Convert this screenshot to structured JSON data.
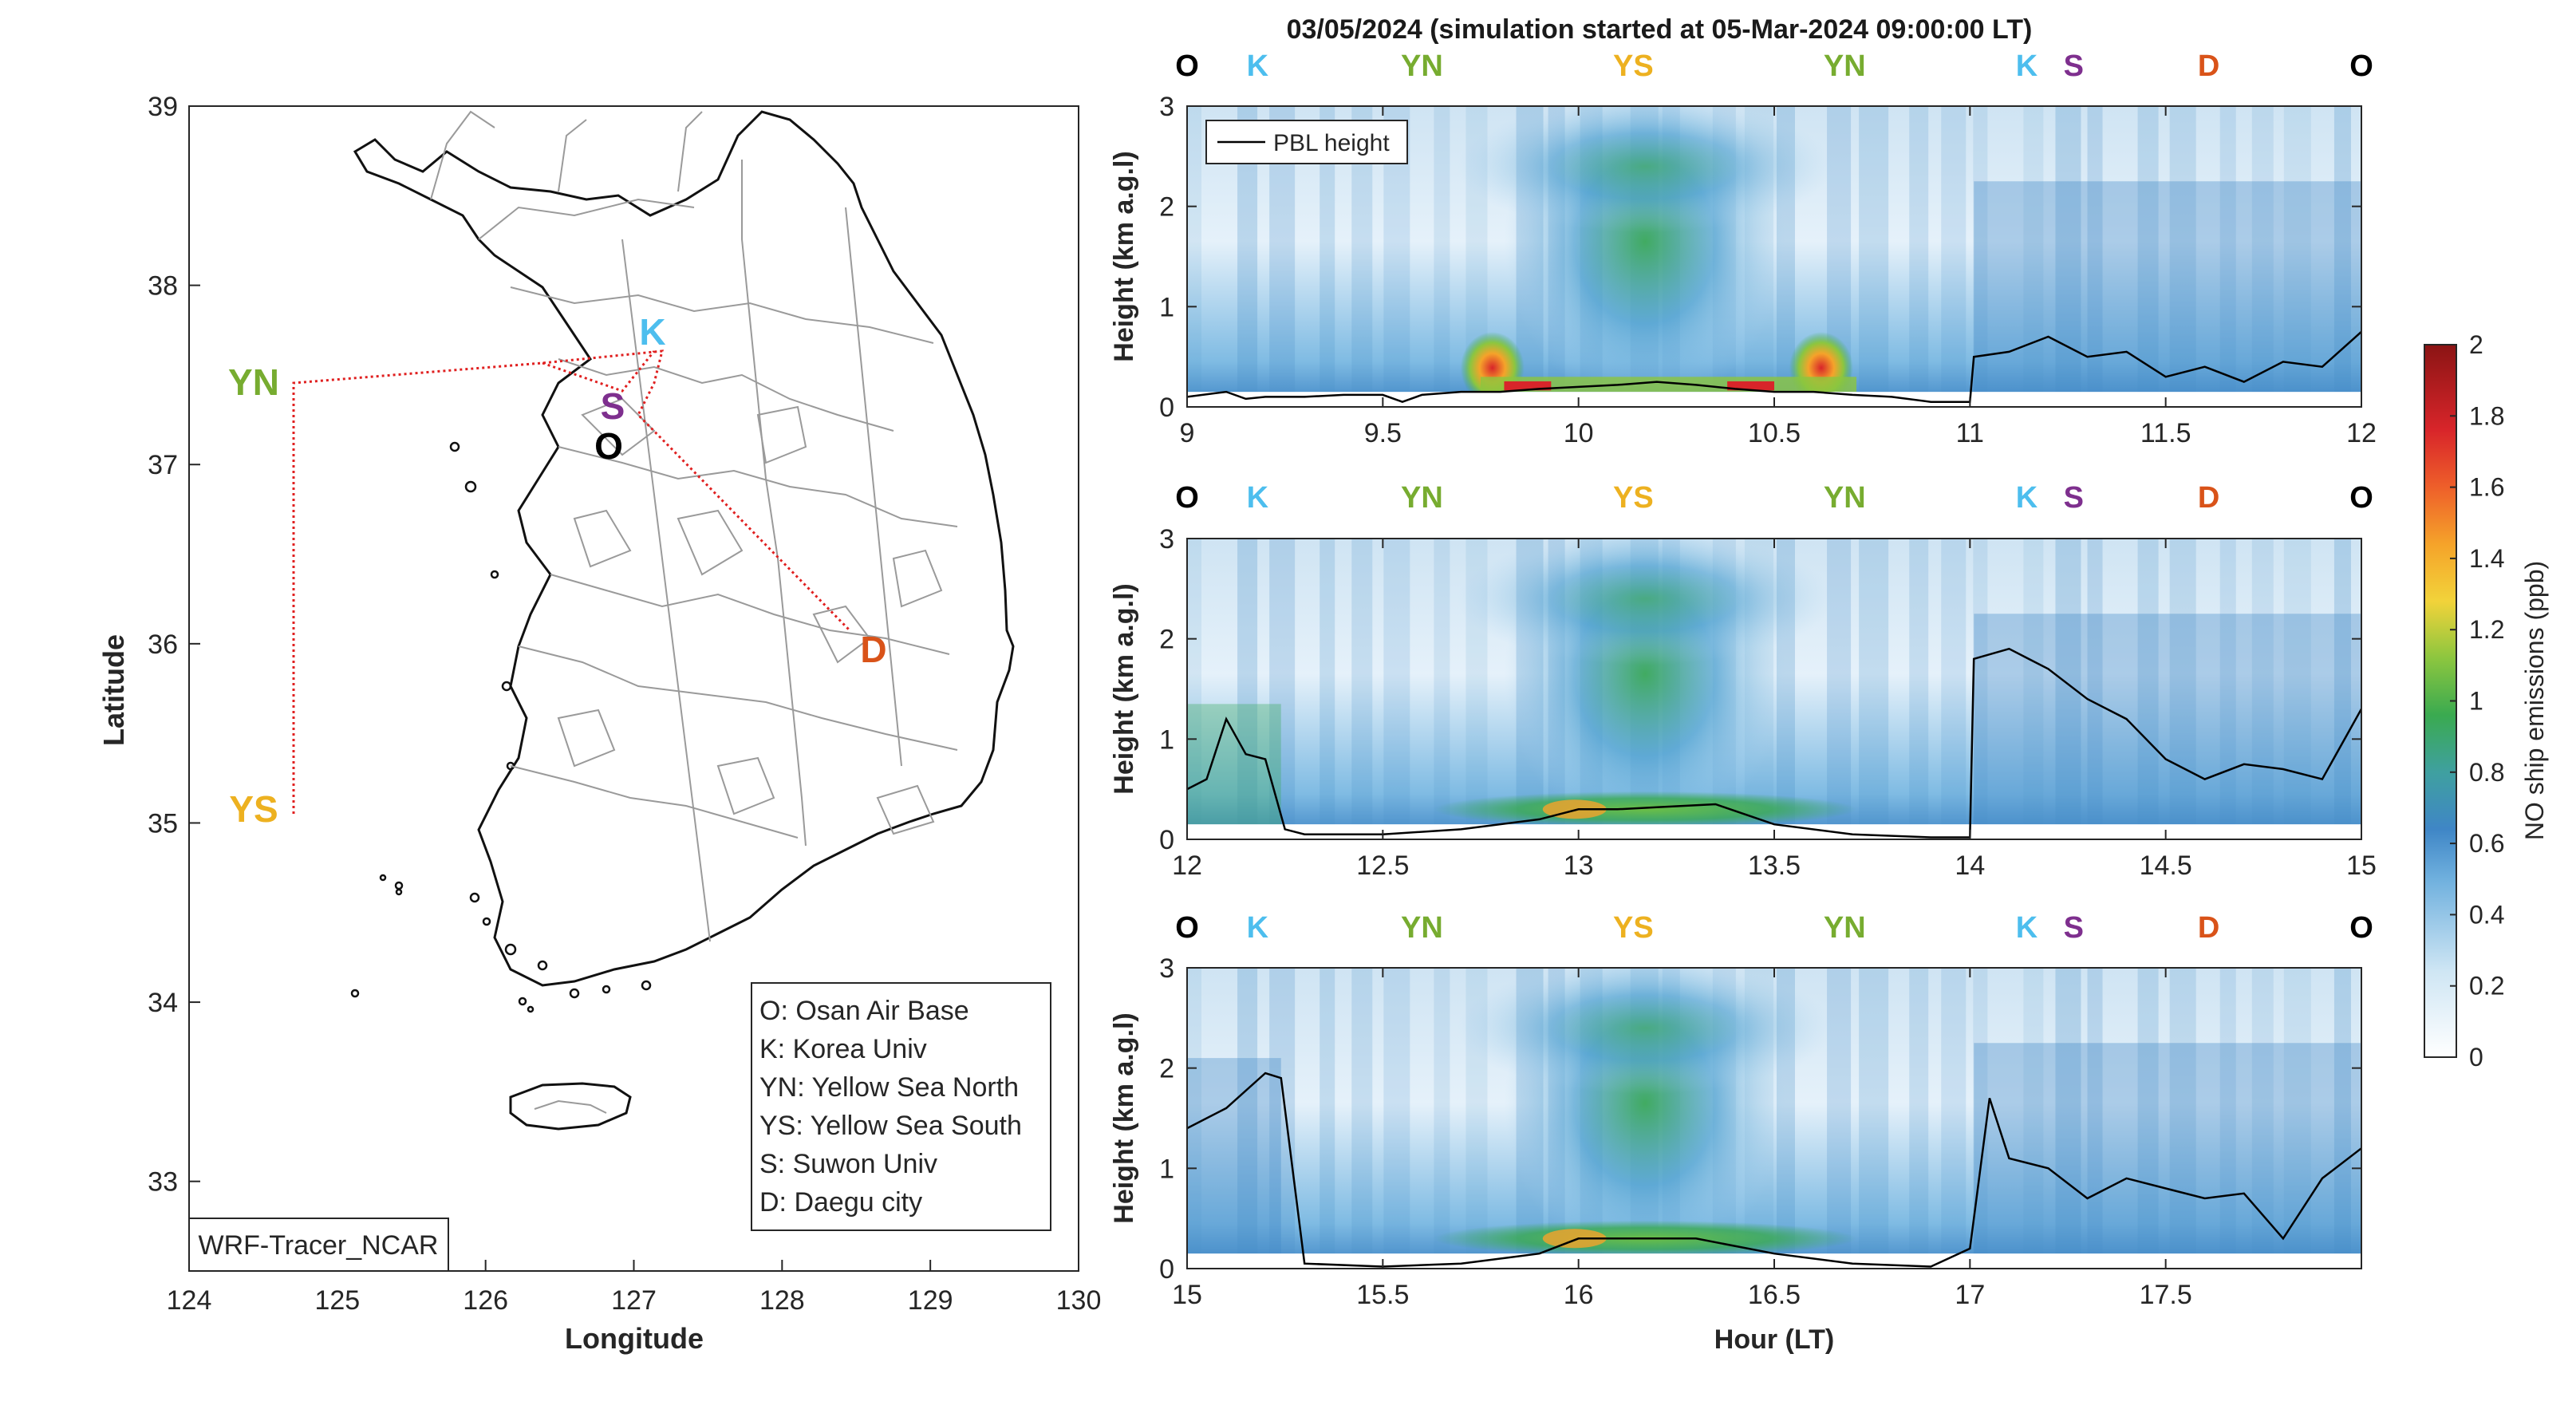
{
  "figure": {
    "title": "03/05/2024 (simulation started at 05-Mar-2024 09:00:00 LT)"
  },
  "colors": {
    "O": "#000000",
    "K": "#4dbeee",
    "YN": "#77ac30",
    "YS": "#edb120",
    "S": "#7e2f8e",
    "D": "#d95319",
    "track": "#e02020"
  },
  "map": {
    "xlabel": "Longitude",
    "ylabel": "Latitude",
    "x_ticks": [
      "124",
      "125",
      "126",
      "127",
      "128",
      "129",
      "130"
    ],
    "y_ticks": [
      "33",
      "34",
      "35",
      "36",
      "37",
      "38",
      "39"
    ],
    "xlim": [
      124,
      130
    ],
    "ylim": [
      32.5,
      39
    ],
    "source_box": "WRF-Tracer_NCAR",
    "site_labels": [
      {
        "code": "YN",
        "lon": 124.7,
        "lat": 37.45
      },
      {
        "code": "YS",
        "lon": 124.7,
        "lat": 35.05
      },
      {
        "code": "K",
        "lon": 127.03,
        "lat": 37.59
      },
      {
        "code": "S",
        "lon": 126.97,
        "lat": 37.28
      },
      {
        "code": "O",
        "lon": 127.03,
        "lat": 37.09
      },
      {
        "code": "D",
        "lon": 128.6,
        "lat": 35.87
      }
    ],
    "legend": [
      "O: Osan Air Base",
      "K: Korea Univ",
      "YN: Yellow Sea North",
      "YS: Yellow Sea South",
      "S: Suwon Univ",
      "D: Daegu city"
    ]
  },
  "chart_data": [
    {
      "type": "heatmap",
      "title": "",
      "xlabel": "",
      "ylabel": "Height (km a.g.l)",
      "x_ticks": [
        "9",
        "9.5",
        "10",
        "10.5",
        "11",
        "11.5",
        "12"
      ],
      "y_ticks": [
        "0",
        "1",
        "2",
        "3"
      ],
      "xlim": [
        9,
        12
      ],
      "ylim": [
        0,
        3
      ],
      "legend": {
        "entries": [
          "PBL height"
        ],
        "placement": "top-left"
      },
      "top_labels": [
        "O",
        "K",
        "YN",
        "YS",
        "YN",
        "K",
        "S",
        "D",
        "O"
      ],
      "series": [
        {
          "name": "PBL height",
          "x": [
            9.0,
            9.1,
            9.15,
            9.2,
            9.3,
            9.4,
            9.5,
            9.55,
            9.6,
            9.7,
            9.8,
            9.9,
            10.0,
            10.1,
            10.2,
            10.3,
            10.4,
            10.5,
            10.6,
            10.7,
            10.8,
            10.9,
            11.0,
            11.01,
            11.1,
            11.2,
            11.3,
            11.4,
            11.5,
            11.6,
            11.7,
            11.8,
            11.9,
            12.0
          ],
          "y": [
            0.1,
            0.15,
            0.08,
            0.1,
            0.1,
            0.12,
            0.12,
            0.05,
            0.12,
            0.15,
            0.15,
            0.18,
            0.2,
            0.22,
            0.25,
            0.22,
            0.18,
            0.15,
            0.15,
            0.12,
            0.1,
            0.05,
            0.05,
            0.5,
            0.55,
            0.7,
            0.5,
            0.55,
            0.3,
            0.4,
            0.25,
            0.45,
            0.4,
            0.75
          ]
        }
      ]
    },
    {
      "type": "heatmap",
      "title": "",
      "xlabel": "",
      "ylabel": "Height (km a.g.l)",
      "x_ticks": [
        "12",
        "12.5",
        "13",
        "13.5",
        "14",
        "14.5",
        "15"
      ],
      "y_ticks": [
        "0",
        "1",
        "2",
        "3"
      ],
      "xlim": [
        12,
        15
      ],
      "ylim": [
        0,
        3
      ],
      "top_labels": [
        "O",
        "K",
        "YN",
        "YS",
        "YN",
        "K",
        "S",
        "D",
        "O"
      ],
      "series": [
        {
          "name": "PBL height",
          "x": [
            12.0,
            12.05,
            12.1,
            12.15,
            12.2,
            12.25,
            12.3,
            12.5,
            12.7,
            12.9,
            13.0,
            13.1,
            13.2,
            13.35,
            13.5,
            13.7,
            13.9,
            14.0,
            14.01,
            14.1,
            14.2,
            14.3,
            14.4,
            14.5,
            14.6,
            14.7,
            14.8,
            14.9,
            15.0
          ],
          "y": [
            0.5,
            0.6,
            1.2,
            0.85,
            0.8,
            0.1,
            0.05,
            0.05,
            0.1,
            0.2,
            0.3,
            0.3,
            0.32,
            0.35,
            0.15,
            0.05,
            0.02,
            0.02,
            1.8,
            1.9,
            1.7,
            1.4,
            1.2,
            0.8,
            0.6,
            0.75,
            0.7,
            0.6,
            1.3
          ]
        }
      ]
    },
    {
      "type": "heatmap",
      "title": "",
      "xlabel": "Hour (LT)",
      "ylabel": "Height (km a.g.l)",
      "x_ticks": [
        "15",
        "15.5",
        "16",
        "16.5",
        "17",
        "17.5"
      ],
      "y_ticks": [
        "0",
        "1",
        "2",
        "3"
      ],
      "xlim": [
        15,
        18
      ],
      "ylim": [
        0,
        3
      ],
      "top_labels": [
        "O",
        "K",
        "YN",
        "YS",
        "YN",
        "K",
        "S",
        "D",
        "O"
      ],
      "series": [
        {
          "name": "PBL height",
          "x": [
            15.0,
            15.1,
            15.2,
            15.24,
            15.3,
            15.5,
            15.7,
            15.9,
            16.0,
            16.1,
            16.3,
            16.5,
            16.7,
            16.9,
            17.0,
            17.05,
            17.1,
            17.2,
            17.3,
            17.4,
            17.5,
            17.6,
            17.7,
            17.8,
            17.9,
            18.0
          ],
          "y": [
            1.4,
            1.6,
            1.95,
            1.9,
            0.05,
            0.02,
            0.05,
            0.15,
            0.3,
            0.3,
            0.3,
            0.15,
            0.05,
            0.02,
            0.2,
            1.7,
            1.1,
            1.0,
            0.7,
            0.9,
            0.8,
            0.7,
            0.75,
            0.3,
            0.9,
            1.2
          ]
        }
      ]
    }
  ],
  "colorbar": {
    "label": "NO ship emissions (ppb)",
    "ticks": [
      "0",
      "0.2",
      "0.4",
      "0.6",
      "0.8",
      "1",
      "1.2",
      "1.4",
      "1.6",
      "1.8",
      "2"
    ],
    "range": [
      0,
      2
    ]
  }
}
